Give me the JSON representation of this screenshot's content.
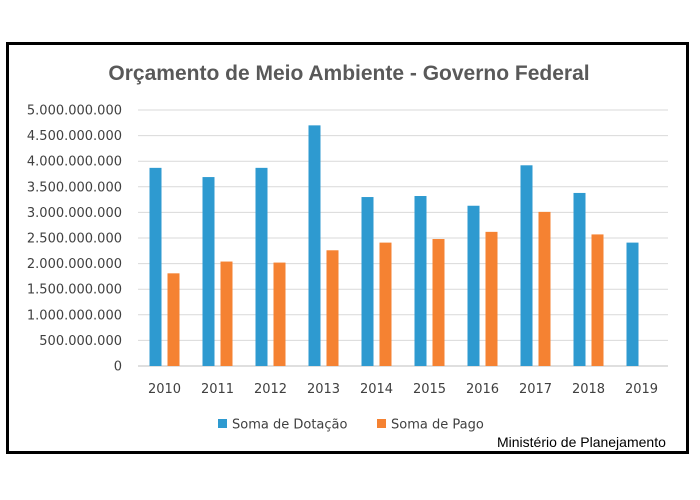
{
  "chart_data": {
    "type": "bar",
    "title": "Orçamento de Meio Ambiente  - Governo Federal",
    "categories": [
      "2010",
      "2011",
      "2012",
      "2013",
      "2014",
      "2015",
      "2016",
      "2017",
      "2018",
      "2019"
    ],
    "series": [
      {
        "name": "Soma de Dotação",
        "color": "#2E9AD0",
        "values": [
          3870000000,
          3690000000,
          3870000000,
          4700000000,
          3300000000,
          3320000000,
          3130000000,
          3920000000,
          3380000000,
          2410000000
        ]
      },
      {
        "name": "Soma de Pago",
        "color": "#F58232",
        "values": [
          1810000000,
          2040000000,
          2020000000,
          2260000000,
          2410000000,
          2480000000,
          2620000000,
          3010000000,
          2570000000,
          null
        ]
      }
    ],
    "yticks": [
      "0",
      "500.000.000",
      "1.000.000.000",
      "1.500.000.000",
      "2.000.000.000",
      "2.500.000.000",
      "3.000.000.000",
      "3.500.000.000",
      "4.000.000.000",
      "4.500.000.000",
      "5.000.000.000"
    ],
    "ylim": [
      0,
      5000000000
    ],
    "grid": true,
    "legend_position": "bottom",
    "source": "Ministério de Planejamento"
  }
}
